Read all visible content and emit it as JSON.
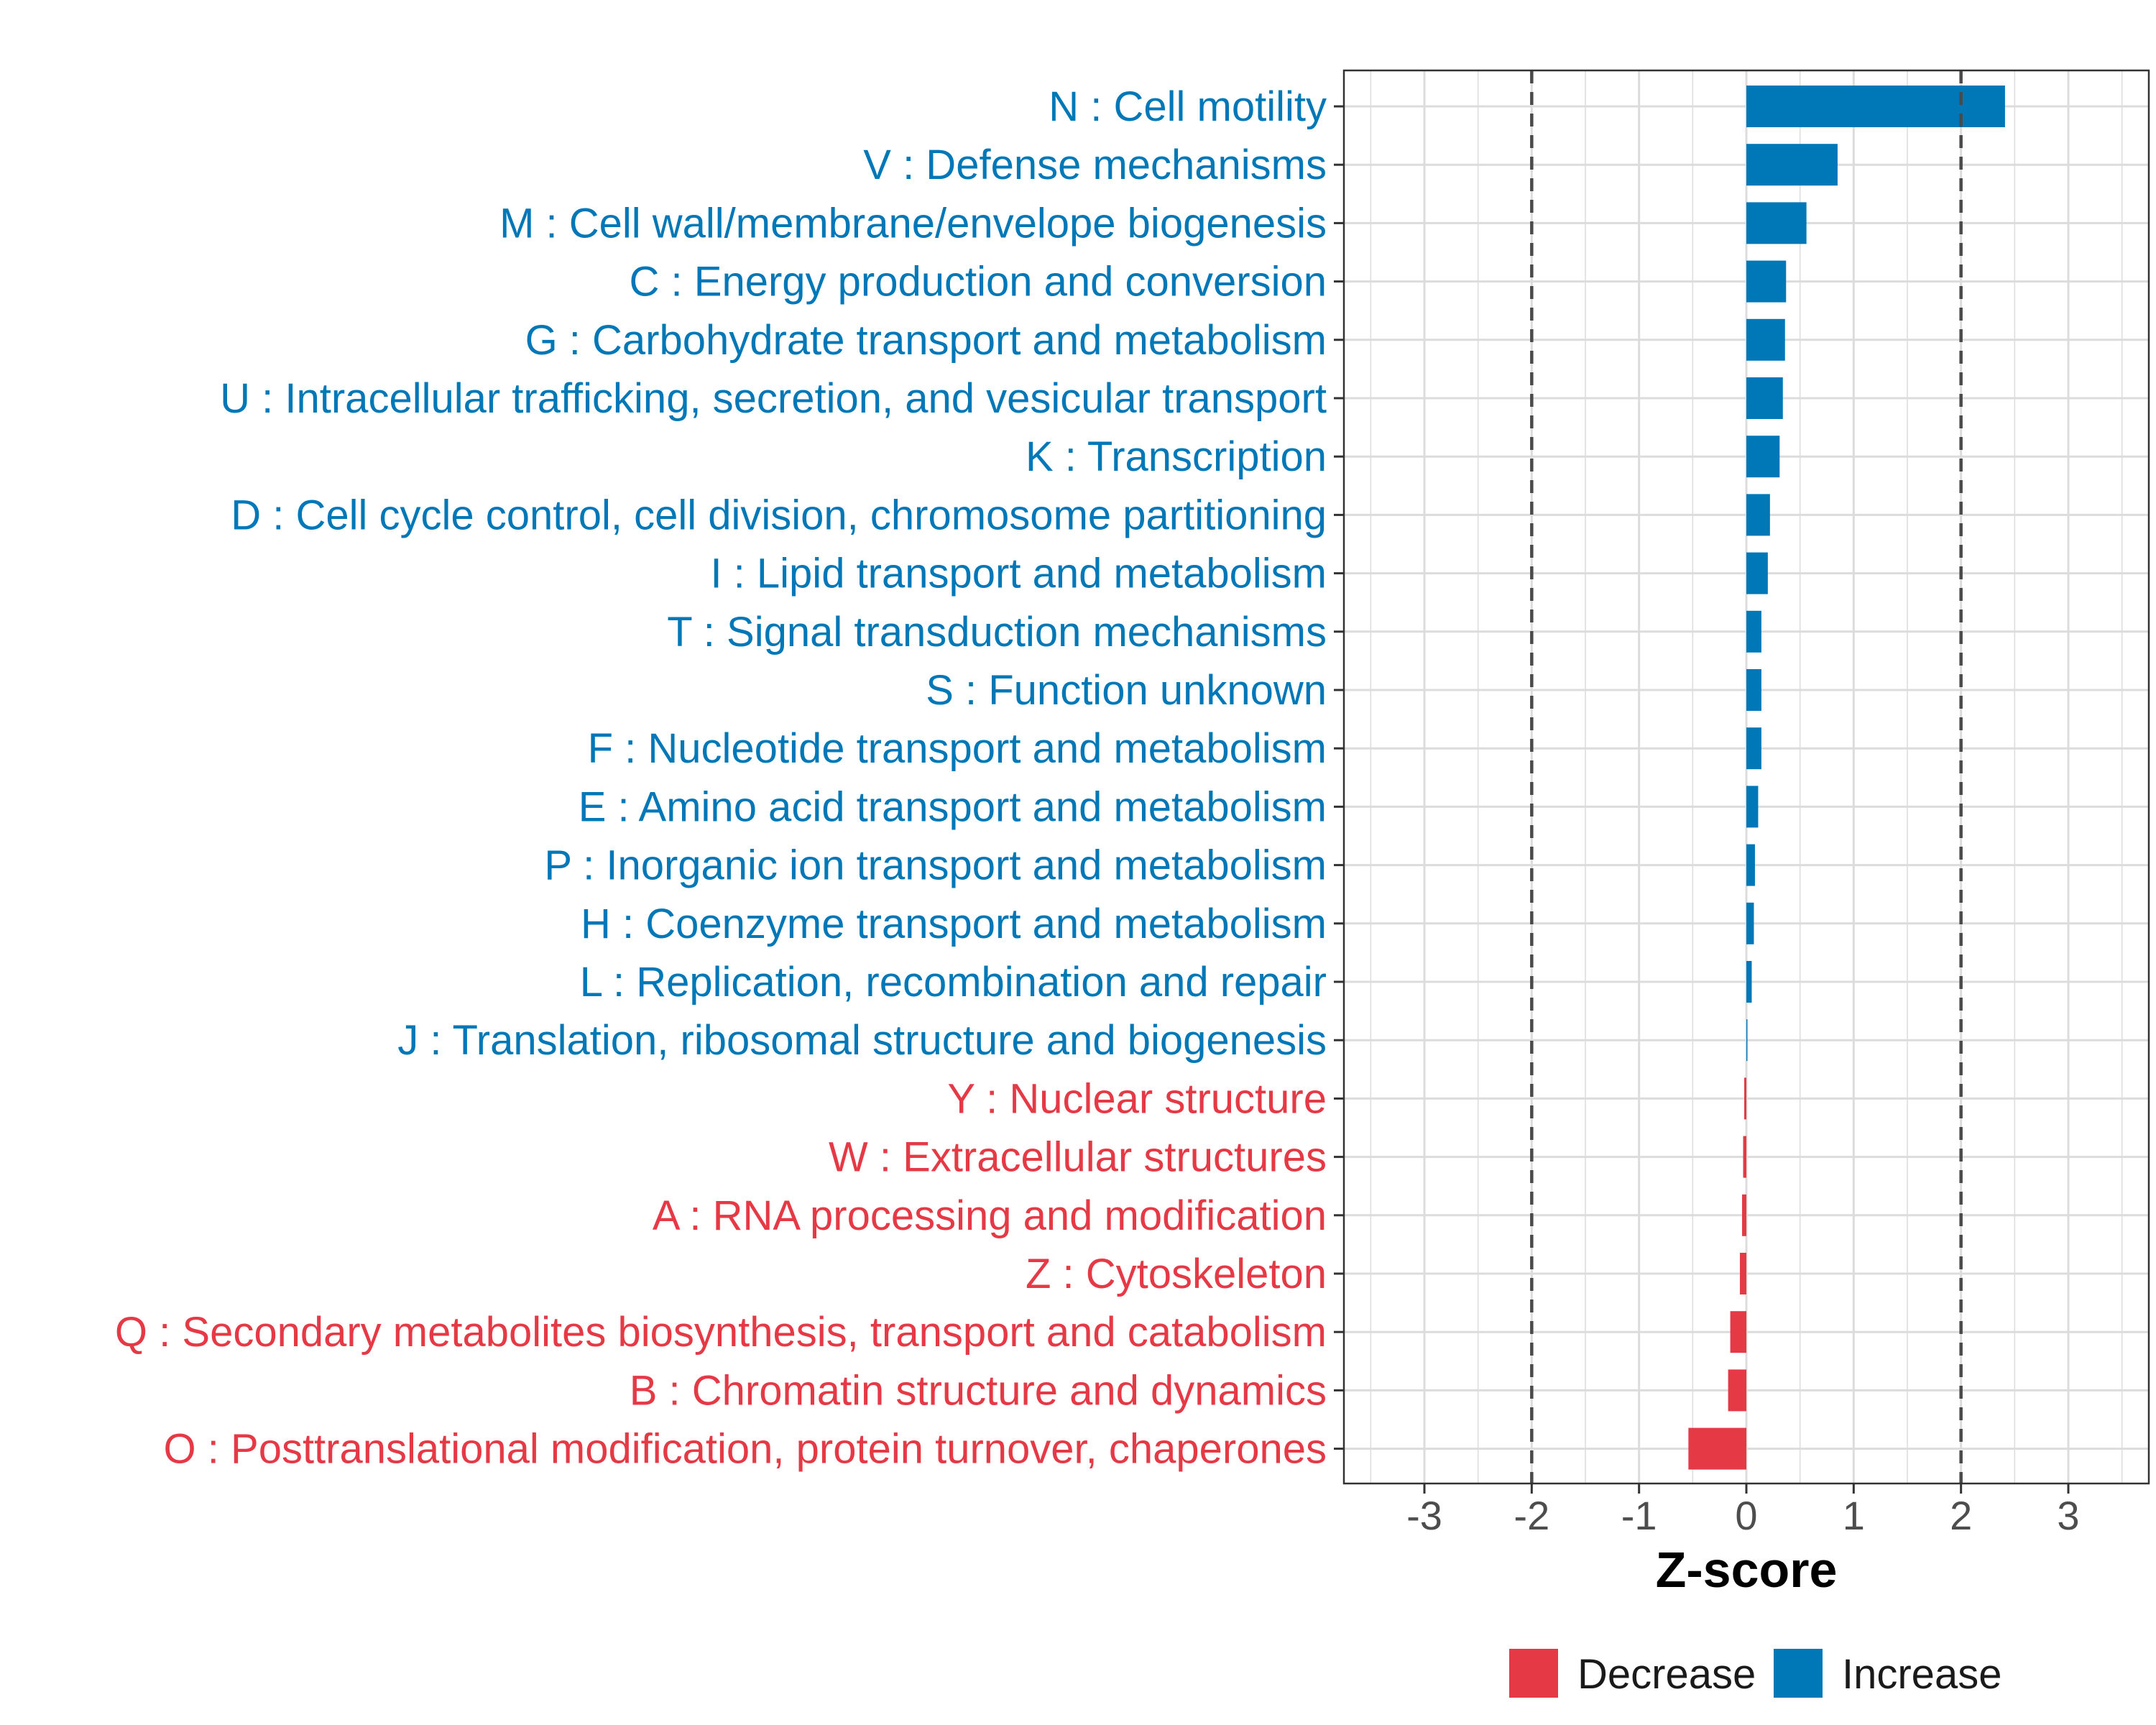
{
  "chart_data": {
    "type": "bar",
    "orientation": "horizontal",
    "xlabel": "Z-score",
    "ylabel": "",
    "xlim": [
      -3.75,
      3.75
    ],
    "xticks": [
      -3,
      -2,
      -1,
      0,
      1,
      2,
      3
    ],
    "threshold_lines": [
      -2,
      2
    ],
    "grid": true,
    "legend_position": "bottom",
    "colors": {
      "Decrease": "#E63946",
      "Increase": "#0077B6"
    },
    "legend": [
      {
        "label": "Decrease",
        "color": "#E63946"
      },
      {
        "label": "Increase",
        "color": "#0077B6"
      }
    ],
    "categories": [
      "N : Cell motility",
      "V : Defense mechanisms",
      "M : Cell wall/membrane/envelope biogenesis",
      "C : Energy production and conversion",
      "G : Carbohydrate transport and metabolism",
      "U : Intracellular trafficking, secretion, and vesicular transport",
      "K : Transcription",
      "D : Cell cycle control, cell division, chromosome partitioning",
      "I : Lipid transport and metabolism",
      "T : Signal transduction mechanisms",
      "S : Function unknown",
      "F : Nucleotide transport and metabolism",
      "E : Amino acid transport and metabolism",
      "P : Inorganic ion transport and metabolism",
      "H : Coenzyme transport and metabolism",
      "L : Replication, recombination and repair",
      "J : Translation, ribosomal structure and biogenesis",
      "Y : Nuclear structure",
      "W : Extracellular structures",
      "A : RNA processing and modification",
      "Z : Cytoskeleton",
      "Q : Secondary metabolites biosynthesis, transport and catabolism",
      "B : Chromatin structure and dynamics",
      "O : Posttranslational modification, protein turnover, chaperones"
    ],
    "values": [
      2.41,
      0.85,
      0.56,
      0.37,
      0.36,
      0.34,
      0.31,
      0.22,
      0.2,
      0.14,
      0.14,
      0.14,
      0.11,
      0.08,
      0.07,
      0.05,
      0.01,
      -0.02,
      -0.03,
      -0.04,
      -0.06,
      -0.15,
      -0.17,
      -0.54
    ],
    "direction": [
      "Increase",
      "Increase",
      "Increase",
      "Increase",
      "Increase",
      "Increase",
      "Increase",
      "Increase",
      "Increase",
      "Increase",
      "Increase",
      "Increase",
      "Increase",
      "Increase",
      "Increase",
      "Increase",
      "Increase",
      "Decrease",
      "Decrease",
      "Decrease",
      "Decrease",
      "Decrease",
      "Decrease",
      "Decrease"
    ]
  }
}
